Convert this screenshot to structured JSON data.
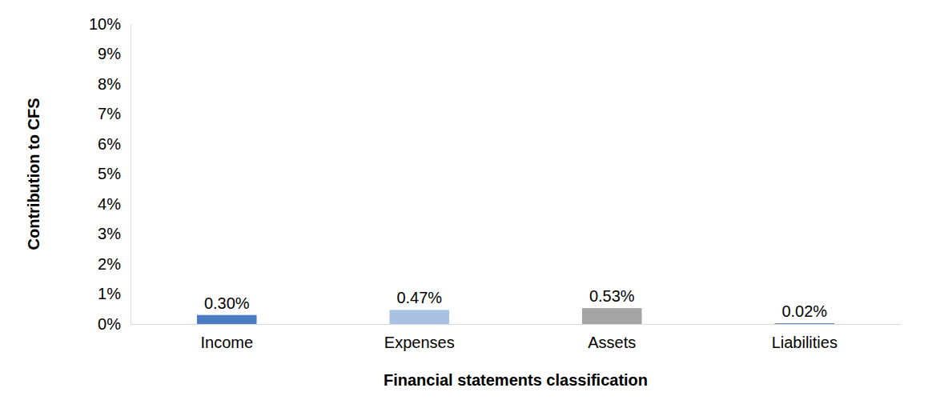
{
  "chart_data": {
    "type": "bar",
    "x_label": "Financial statements classification",
    "y_label": "Contribution to CFS",
    "categories": [
      "Income",
      "Expenses",
      "Assets",
      "Liabilities"
    ],
    "values": [
      0.3,
      0.47,
      0.53,
      0.02
    ],
    "value_labels": [
      "0.30%",
      "0.47%",
      "0.53%",
      "0.02%"
    ],
    "colors": [
      "#4a7cc4",
      "#a9c1e3",
      "#a5a5a5",
      "#2e5f9a"
    ],
    "ylim": [
      0,
      10
    ],
    "yticks": [
      {
        "value": 0,
        "label": "0%"
      },
      {
        "value": 1,
        "label": "1%"
      },
      {
        "value": 2,
        "label": "2%"
      },
      {
        "value": 3,
        "label": "3%"
      },
      {
        "value": 4,
        "label": "4%"
      },
      {
        "value": 5,
        "label": "5%"
      },
      {
        "value": 6,
        "label": "6%"
      },
      {
        "value": 7,
        "label": "7%"
      },
      {
        "value": 8,
        "label": "8%"
      },
      {
        "value": 9,
        "label": "9%"
      },
      {
        "value": 10,
        "label": "10%"
      }
    ],
    "grid": false,
    "data_labels": true
  }
}
